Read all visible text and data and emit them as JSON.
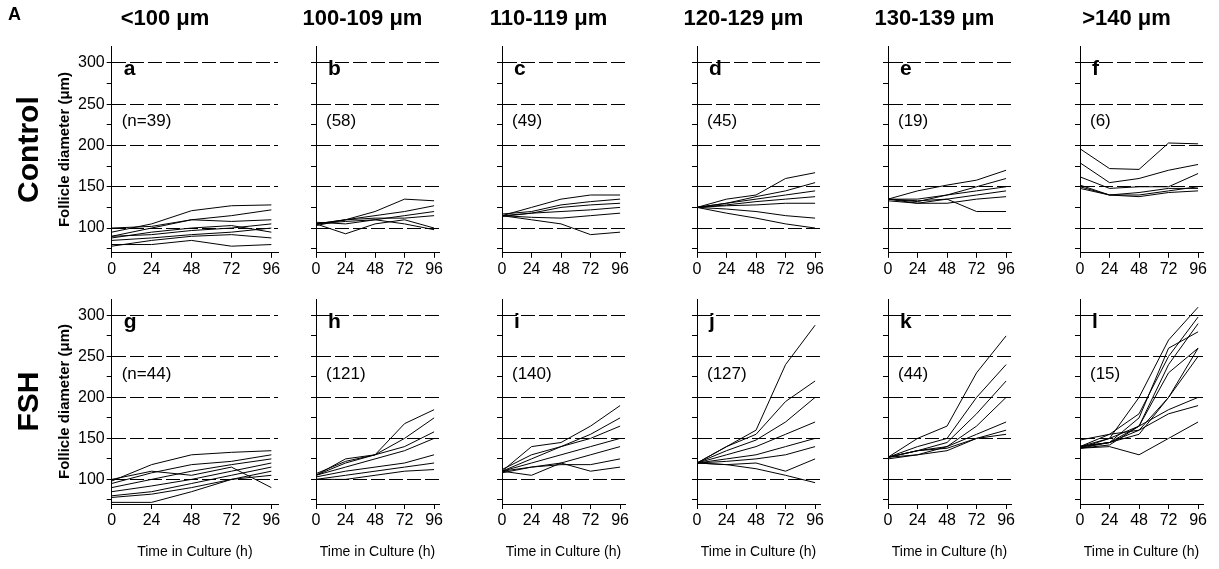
{
  "chart_data": [
    {
      "type": "line",
      "title": "<100 μm",
      "ylabel": "Follicle diameter (μm)",
      "annotations": [
        "a",
        "(n=39)",
        "Control",
        "A"
      ],
      "xlim": [
        0,
        100
      ],
      "xticks": [
        0,
        24,
        48,
        72,
        96
      ],
      "ylim": [
        70,
        320
      ],
      "yticks": [
        {
          "value": 75,
          "label": null
        },
        100,
        {
          "value": 125,
          "label": null
        },
        150,
        {
          "value": 175,
          "label": null
        },
        200,
        {
          "value": 225,
          "label": null
        },
        250,
        {
          "value": 275,
          "label": null
        },
        300
      ],
      "grid": "y",
      "marker": "none",
      "line_style": "solid",
      "x": [
        0,
        24,
        48,
        72,
        96
      ],
      "series": [
        {
          "color": "#000000",
          "values": [
            90,
            100,
            110,
            115,
            122
          ]
        },
        {
          "color": "#000000",
          "values": [
            95,
            105,
            121,
            127,
            128
          ]
        },
        {
          "color": "#000000",
          "values": [
            80,
            80,
            85,
            78,
            80
          ]
        },
        {
          "color": "#000000",
          "values": [
            85,
            88,
            92,
            95,
            100
          ]
        },
        {
          "color": "#000000",
          "values": [
            90,
            92,
            97,
            100,
            105
          ]
        },
        {
          "color": "#000000",
          "values": [
            100,
            102,
            110,
            108,
            110
          ]
        },
        {
          "color": "#000000",
          "values": [
            88,
            95,
            100,
            103,
            95
          ]
        },
        {
          "color": "#000000",
          "values": [
            78,
            85,
            90,
            92,
            88
          ]
        }
      ]
    },
    {
      "type": "line",
      "title": "100-109 μm",
      "annotations": [
        "b",
        "(58)"
      ],
      "xlim": [
        0,
        100
      ],
      "xticks": [
        0,
        24,
        48,
        72,
        96
      ],
      "ylim": [
        70,
        320
      ],
      "yticks": [
        {
          "value": 75,
          "label": null
        },
        100,
        {
          "value": 125,
          "label": null
        },
        150,
        {
          "value": 175,
          "label": null
        },
        200,
        {
          "value": 225,
          "label": null
        },
        250,
        {
          "value": 275,
          "label": null
        },
        300
      ],
      "grid": "y",
      "tick_labels": "x",
      "marker": "none",
      "line_style": "solid",
      "x": [
        0,
        24,
        48,
        72,
        96
      ],
      "series": [
        {
          "color": "#000000",
          "values": [
            105,
            110,
            120,
            135,
            133
          ]
        },
        {
          "color": "#000000",
          "values": [
            105,
            93,
            105,
            110,
            100
          ]
        },
        {
          "color": "#000000",
          "values": [
            105,
            110,
            115,
            120,
            127
          ]
        },
        {
          "color": "#000000",
          "values": [
            105,
            108,
            110,
            115,
            120
          ]
        },
        {
          "color": "#000000",
          "values": [
            107,
            105,
            110,
            105,
            98
          ]
        },
        {
          "color": "#000000",
          "values": [
            103,
            110,
            112,
            112,
            115
          ]
        }
      ]
    },
    {
      "type": "line",
      "title": "110-119 μm",
      "annotations": [
        "c",
        "(49)"
      ],
      "xlim": [
        0,
        100
      ],
      "xticks": [
        0,
        24,
        48,
        72,
        96
      ],
      "ylim": [
        70,
        320
      ],
      "yticks": [
        {
          "value": 75,
          "label": null
        },
        100,
        {
          "value": 125,
          "label": null
        },
        150,
        {
          "value": 175,
          "label": null
        },
        200,
        {
          "value": 225,
          "label": null
        },
        250,
        {
          "value": 275,
          "label": null
        },
        300
      ],
      "grid": "y",
      "tick_labels": "x",
      "marker": "none",
      "line_style": "solid",
      "x": [
        0,
        24,
        48,
        72,
        96
      ],
      "series": [
        {
          "color": "#000000",
          "values": [
            115,
            125,
            135,
            140,
            140
          ]
        },
        {
          "color": "#000000",
          "values": [
            115,
            110,
            105,
            92,
            95
          ]
        },
        {
          "color": "#000000",
          "values": [
            115,
            118,
            125,
            128,
            130
          ]
        },
        {
          "color": "#000000",
          "values": [
            114,
            118,
            120,
            122,
            125
          ]
        },
        {
          "color": "#000000",
          "values": [
            115,
            113,
            112,
            115,
            118
          ]
        },
        {
          "color": "#000000",
          "values": [
            117,
            120,
            128,
            132,
            135
          ]
        }
      ]
    },
    {
      "type": "line",
      "title": "120-129 μm",
      "annotations": [
        "d",
        "(45)"
      ],
      "xlim": [
        0,
        100
      ],
      "xticks": [
        0,
        24,
        48,
        72,
        96
      ],
      "ylim": [
        70,
        320
      ],
      "yticks": [
        {
          "value": 75,
          "label": null
        },
        100,
        {
          "value": 125,
          "label": null
        },
        150,
        {
          "value": 175,
          "label": null
        },
        200,
        {
          "value": 225,
          "label": null
        },
        250,
        {
          "value": 275,
          "label": null
        },
        300
      ],
      "grid": "y",
      "tick_labels": "x",
      "marker": "none",
      "line_style": "solid",
      "x": [
        0,
        24,
        48,
        72,
        96
      ],
      "series": [
        {
          "color": "#000000",
          "values": [
            125,
            135,
            140,
            160,
            167
          ]
        },
        {
          "color": "#000000",
          "values": [
            125,
            118,
            112,
            105,
            100
          ]
        },
        {
          "color": "#000000",
          "values": [
            125,
            130,
            135,
            140,
            145
          ]
        },
        {
          "color": "#000000",
          "values": [
            125,
            128,
            132,
            135,
            138
          ]
        },
        {
          "color": "#000000",
          "values": [
            125,
            123,
            120,
            115,
            112
          ]
        },
        {
          "color": "#000000",
          "values": [
            125,
            130,
            138,
            145,
            155
          ]
        },
        {
          "color": "#000000",
          "values": [
            125,
            127,
            128,
            130,
            130
          ]
        }
      ]
    },
    {
      "type": "line",
      "title": "130-139 μm",
      "annotations": [
        "e",
        "(19)"
      ],
      "xlim": [
        0,
        100
      ],
      "xticks": [
        0,
        24,
        48,
        72,
        96
      ],
      "ylim": [
        70,
        320
      ],
      "yticks": [
        {
          "value": 75,
          "label": null
        },
        100,
        {
          "value": 125,
          "label": null
        },
        150,
        {
          "value": 175,
          "label": null
        },
        200,
        {
          "value": 225,
          "label": null
        },
        250,
        {
          "value": 275,
          "label": null
        },
        300
      ],
      "grid": "y",
      "tick_labels": "x",
      "marker": "none",
      "line_style": "solid",
      "x": [
        0,
        24,
        48,
        72,
        96
      ],
      "series": [
        {
          "color": "#000000",
          "values": [
            135,
            145,
            152,
            158,
            170
          ]
        },
        {
          "color": "#000000",
          "values": [
            135,
            130,
            135,
            120,
            120
          ]
        },
        {
          "color": "#000000",
          "values": [
            135,
            132,
            140,
            145,
            150
          ]
        },
        {
          "color": "#000000",
          "values": [
            135,
            133,
            135,
            140,
            145
          ]
        },
        {
          "color": "#000000",
          "values": [
            135,
            135,
            140,
            150,
            160
          ]
        },
        {
          "color": "#000000",
          "values": [
            133,
            130,
            130,
            135,
            138
          ]
        }
      ]
    },
    {
      "type": "line",
      "title": ">140 μm",
      "annotations": [
        "f",
        "(6)"
      ],
      "xlim": [
        0,
        100
      ],
      "xticks": [
        0,
        24,
        48,
        72,
        96
      ],
      "ylim": [
        70,
        320
      ],
      "yticks": [
        {
          "value": 75,
          "label": null
        },
        100,
        {
          "value": 125,
          "label": null
        },
        150,
        {
          "value": 175,
          "label": null
        },
        200,
        {
          "value": 225,
          "label": null
        },
        250,
        {
          "value": 275,
          "label": null
        },
        300
      ],
      "grid": "y",
      "tick_labels": "x",
      "marker": "none",
      "line_style": "solid",
      "x": [
        0,
        24,
        48,
        72,
        96
      ],
      "series": [
        {
          "color": "#000000",
          "values": [
            196,
            172,
            171,
            203,
            202
          ]
        },
        {
          "color": "#000000",
          "values": [
            179,
            155,
            160,
            170,
            177
          ]
        },
        {
          "color": "#000000",
          "values": [
            162,
            148,
            150,
            150,
            166
          ]
        },
        {
          "color": "#000000",
          "values": [
            150,
            140,
            140,
            145,
            150
          ]
        },
        {
          "color": "#000000",
          "values": [
            148,
            140,
            143,
            148,
            148
          ]
        },
        {
          "color": "#000000",
          "values": [
            152,
            140,
            138,
            143,
            145
          ]
        }
      ]
    },
    {
      "type": "line",
      "xlabel": "Time in Culture (h)",
      "ylabel": "Follicle diameter (μm)",
      "annotations": [
        "g",
        "(n=44)",
        "FSH"
      ],
      "xlim": [
        0,
        100
      ],
      "xticks": [
        0,
        24,
        48,
        72,
        96
      ],
      "ylim": [
        70,
        320
      ],
      "yticks": [
        {
          "value": 75,
          "label": null
        },
        100,
        {
          "value": 125,
          "label": null
        },
        150,
        {
          "value": 175,
          "label": null
        },
        200,
        {
          "value": 225,
          "label": null
        },
        250,
        {
          "value": 275,
          "label": null
        },
        300
      ],
      "grid": "y",
      "marker": "none",
      "line_style": "solid",
      "x": [
        0,
        24,
        48,
        72,
        96
      ],
      "series": [
        {
          "color": "#000000",
          "values": [
            98,
            118,
            130,
            133,
            135
          ]
        },
        {
          "color": "#000000",
          "values": [
            72,
            72,
            85,
            100,
            110
          ]
        },
        {
          "color": "#000000",
          "values": [
            80,
            85,
            95,
            105,
            115
          ]
        },
        {
          "color": "#000000",
          "values": [
            90,
            100,
            110,
            118,
            125
          ]
        },
        {
          "color": "#000000",
          "values": [
            95,
            108,
            118,
            122,
            130
          ]
        },
        {
          "color": "#000000",
          "values": [
            85,
            92,
            100,
            110,
            120
          ]
        },
        {
          "color": "#000000",
          "values": [
            100,
            110,
            105,
            115,
            90
          ]
        },
        {
          "color": "#000000",
          "values": [
            78,
            82,
            90,
            100,
            105
          ]
        }
      ]
    },
    {
      "type": "line",
      "xlabel": "Time in Culture (h)",
      "annotations": [
        "h",
        "(121)"
      ],
      "xlim": [
        0,
        100
      ],
      "xticks": [
        0,
        24,
        48,
        72,
        96
      ],
      "ylim": [
        70,
        320
      ],
      "yticks": [
        {
          "value": 75,
          "label": null
        },
        100,
        {
          "value": 125,
          "label": null
        },
        150,
        {
          "value": 175,
          "label": null
        },
        200,
        {
          "value": 225,
          "label": null
        },
        250,
        {
          "value": 275,
          "label": null
        },
        300
      ],
      "grid": "y",
      "tick_labels": "x",
      "marker": "none",
      "line_style": "solid",
      "x": [
        0,
        24,
        48,
        72,
        96
      ],
      "series": [
        {
          "color": "#000000",
          "values": [
            105,
            125,
            130,
            168,
            185
          ]
        },
        {
          "color": "#000000",
          "values": [
            105,
            120,
            130,
            150,
            175
          ]
        },
        {
          "color": "#000000",
          "values": [
            100,
            100,
            105,
            110,
            112
          ]
        },
        {
          "color": "#000000",
          "values": [
            105,
            115,
            125,
            135,
            150
          ]
        },
        {
          "color": "#000000",
          "values": [
            103,
            110,
            115,
            120,
            130
          ]
        },
        {
          "color": "#000000",
          "values": [
            100,
            105,
            110,
            115,
            120
          ]
        },
        {
          "color": "#000000",
          "values": [
            107,
            122,
            130,
            140,
            158
          ]
        }
      ]
    },
    {
      "type": "line",
      "xlabel": "Time in Culture (h)",
      "annotations": [
        "i",
        "(140)"
      ],
      "xlim": [
        0,
        100
      ],
      "xticks": [
        0,
        24,
        48,
        72,
        96
      ],
      "ylim": [
        70,
        320
      ],
      "yticks": [
        {
          "value": 75,
          "label": null
        },
        100,
        {
          "value": 125,
          "label": null
        },
        150,
        {
          "value": 175,
          "label": null
        },
        200,
        {
          "value": 225,
          "label": null
        },
        250,
        {
          "value": 275,
          "label": null
        },
        300
      ],
      "grid": "y",
      "tick_labels": "x",
      "marker": "none",
      "line_style": "solid",
      "x": [
        0,
        24,
        48,
        72,
        96
      ],
      "series": [
        {
          "color": "#000000",
          "values": [
            110,
            140,
            145,
            165,
            190
          ]
        },
        {
          "color": "#000000",
          "values": [
            110,
            105,
            120,
            110,
            115
          ]
        },
        {
          "color": "#000000",
          "values": [
            110,
            125,
            140,
            150,
            165
          ]
        },
        {
          "color": "#000000",
          "values": [
            110,
            120,
            130,
            140,
            150
          ]
        },
        {
          "color": "#000000",
          "values": [
            110,
            115,
            120,
            130,
            140
          ]
        },
        {
          "color": "#000000",
          "values": [
            112,
            130,
            140,
            155,
            175
          ]
        },
        {
          "color": "#000000",
          "values": [
            108,
            115,
            118,
            118,
            125
          ]
        }
      ]
    },
    {
      "type": "line",
      "xlabel": "Time in Culture (h)",
      "annotations": [
        "j",
        "(127)"
      ],
      "xlim": [
        0,
        100
      ],
      "xticks": [
        0,
        24,
        48,
        72,
        96
      ],
      "ylim": [
        70,
        320
      ],
      "yticks": [
        {
          "value": 75,
          "label": null
        },
        100,
        {
          "value": 125,
          "label": null
        },
        150,
        {
          "value": 175,
          "label": null
        },
        200,
        {
          "value": 225,
          "label": null
        },
        250,
        {
          "value": 275,
          "label": null
        },
        300
      ],
      "grid": "y",
      "tick_labels": "x",
      "marker": "none",
      "line_style": "solid",
      "x": [
        0,
        24,
        48,
        72,
        96
      ],
      "series": [
        {
          "color": "#000000",
          "values": [
            120,
            140,
            160,
            240,
            288
          ]
        },
        {
          "color": "#000000",
          "values": [
            120,
            118,
            113,
            105,
            96
          ]
        },
        {
          "color": "#000000",
          "values": [
            120,
            140,
            155,
            195,
            220
          ]
        },
        {
          "color": "#000000",
          "values": [
            120,
            135,
            148,
            170,
            200
          ]
        },
        {
          "color": "#000000",
          "values": [
            120,
            130,
            140,
            155,
            170
          ]
        },
        {
          "color": "#000000",
          "values": [
            120,
            125,
            130,
            140,
            150
          ]
        },
        {
          "color": "#000000",
          "values": [
            120,
            122,
            125,
            130,
            140
          ]
        },
        {
          "color": "#000000",
          "values": [
            120,
            118,
            120,
            110,
            125
          ]
        }
      ]
    },
    {
      "type": "line",
      "xlabel": "Time in Culture (h)",
      "annotations": [
        "k",
        "(44)"
      ],
      "xlim": [
        0,
        100
      ],
      "xticks": [
        0,
        24,
        48,
        72,
        96
      ],
      "ylim": [
        70,
        320
      ],
      "yticks": [
        {
          "value": 75,
          "label": null
        },
        100,
        {
          "value": 125,
          "label": null
        },
        150,
        {
          "value": 175,
          "label": null
        },
        200,
        {
          "value": 225,
          "label": null
        },
        250,
        {
          "value": 275,
          "label": null
        },
        300
      ],
      "grid": "y",
      "tick_labels": "x",
      "marker": "none",
      "line_style": "solid",
      "x": [
        0,
        24,
        48,
        72,
        96
      ],
      "series": [
        {
          "color": "#000000",
          "values": [
            127,
            150,
            165,
            230,
            275
          ]
        },
        {
          "color": "#000000",
          "values": [
            127,
            140,
            150,
            200,
            240
          ]
        },
        {
          "color": "#000000",
          "values": [
            127,
            135,
            140,
            165,
            200
          ]
        },
        {
          "color": "#000000",
          "values": [
            127,
            135,
            145,
            180,
            220
          ]
        },
        {
          "color": "#000000",
          "values": [
            127,
            130,
            140,
            155,
            170
          ]
        },
        {
          "color": "#000000",
          "values": [
            125,
            130,
            135,
            150,
            155
          ]
        },
        {
          "color": "#000000",
          "values": [
            127,
            135,
            138,
            150,
            160
          ]
        }
      ]
    },
    {
      "type": "line",
      "xlabel": "Time in Culture (h)",
      "annotations": [
        "l",
        "(15)"
      ],
      "xlim": [
        0,
        100
      ],
      "xticks": [
        0,
        24,
        48,
        72,
        96
      ],
      "ylim": [
        70,
        320
      ],
      "yticks": [
        {
          "value": 75,
          "label": null
        },
        100,
        {
          "value": 125,
          "label": null
        },
        150,
        {
          "value": 175,
          "label": null
        },
        200,
        {
          "value": 225,
          "label": null
        },
        250,
        {
          "value": 275,
          "label": null
        },
        300
      ],
      "grid": "y",
      "tick_labels": "x",
      "marker": "none",
      "line_style": "solid",
      "x": [
        0,
        24,
        48,
        72,
        96
      ],
      "series": [
        {
          "color": "#000000",
          "values": [
            138,
            150,
            200,
            270,
            310
          ]
        },
        {
          "color": "#000000",
          "values": [
            140,
            155,
            180,
            250,
            298
          ]
        },
        {
          "color": "#000000",
          "values": [
            140,
            145,
            175,
            260,
            280
          ]
        },
        {
          "color": "#000000",
          "values": [
            138,
            145,
            165,
            230,
            260
          ]
        },
        {
          "color": "#000000",
          "values": [
            140,
            145,
            160,
            200,
            260
          ]
        },
        {
          "color": "#000000",
          "values": [
            138,
            140,
            130,
            150,
            170
          ]
        },
        {
          "color": "#000000",
          "values": [
            140,
            150,
            165,
            185,
            200
          ]
        },
        {
          "color": "#000000",
          "values": [
            148,
            155,
            160,
            180,
            190
          ]
        },
        {
          "color": "#000000",
          "values": [
            140,
            145,
            155,
            200,
            250
          ]
        },
        {
          "color": "#000000",
          "values": [
            138,
            142,
            165,
            240,
            290
          ]
        }
      ]
    }
  ]
}
